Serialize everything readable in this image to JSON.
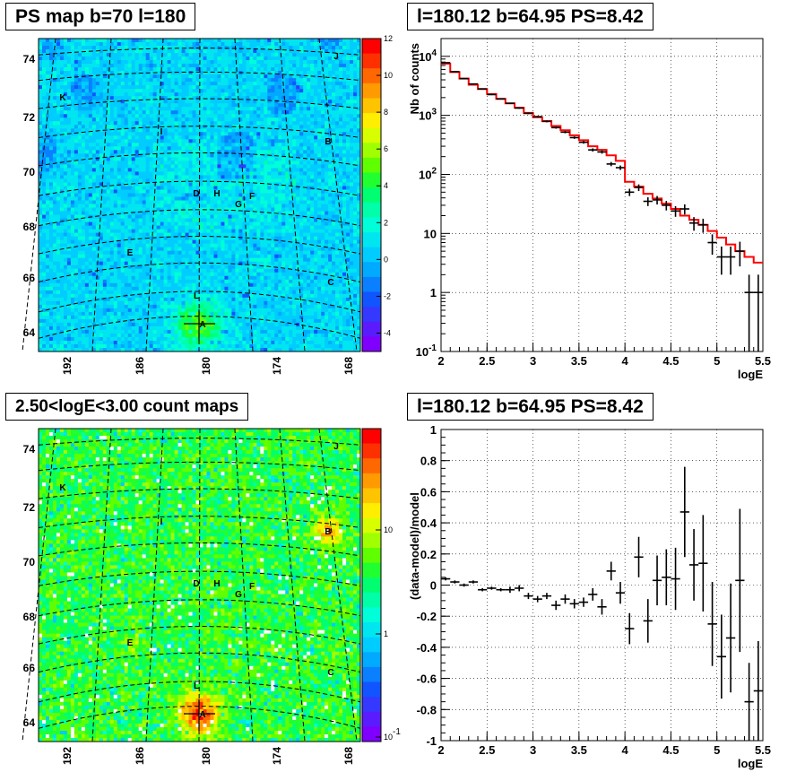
{
  "panels": {
    "tl_title": "PS map b=70 l=180",
    "tr_title": "l=180.12 b=64.95 PS=8.42",
    "bl_title": "2.50<logE<3.00 count maps",
    "br_title": "l=180.12 b=64.95 PS=8.42"
  },
  "colors": {
    "data": "#000000",
    "model": "#ff0000"
  },
  "chart_data": [
    {
      "type": "heatmap",
      "title": "PS map b=70 l=180",
      "x_ticks": [
        "192",
        "186",
        "180",
        "174",
        "168"
      ],
      "y_ticks": [
        "64",
        "66",
        "68",
        "70",
        "72",
        "74"
      ],
      "colorbar_ticks": [
        "12",
        "10",
        "8",
        "6",
        "4",
        "2",
        "0",
        "-2",
        "-4"
      ],
      "colorbar_range": [
        -5,
        12
      ],
      "source_labels": [
        "A",
        "B",
        "C",
        "D",
        "E",
        "F",
        "G",
        "H",
        "I",
        "J",
        "K",
        "L"
      ]
    },
    {
      "type": "line",
      "title": "l=180.12 b=64.95 PS=8.42",
      "xlabel": "logE",
      "ylabel": "Nb of counts",
      "xlim": [
        2,
        5.5
      ],
      "ylim": [
        0.1,
        20000
      ],
      "yscale": "log",
      "x_ticks": [
        "2",
        "2.5",
        "3",
        "3.5",
        "4",
        "4.5",
        "5",
        "5.5"
      ],
      "y_ticks": [
        "10^-1",
        "1",
        "10",
        "10^2",
        "10^3",
        "10^4"
      ],
      "grid": true,
      "series": [
        {
          "style": "errorbar",
          "x": [
            2.05,
            2.15,
            2.25,
            2.35,
            2.45,
            2.55,
            2.65,
            2.75,
            2.85,
            2.95,
            3.05,
            3.15,
            3.25,
            3.35,
            3.45,
            3.55,
            3.65,
            3.75,
            3.85,
            3.95,
            4.05,
            4.15,
            4.25,
            4.35,
            4.45,
            4.55,
            4.65,
            4.75,
            4.85,
            4.95,
            5.05,
            5.15,
            5.25,
            5.35,
            5.45
          ],
          "y": [
            7800,
            5500,
            4200,
            3400,
            2800,
            2250,
            1900,
            1600,
            1330,
            1080,
            950,
            790,
            620,
            520,
            420,
            350,
            260,
            240,
            150,
            130,
            50,
            60,
            35,
            37,
            30,
            24,
            26,
            15,
            14,
            7,
            4,
            4,
            5,
            1,
            1
          ]
        },
        {
          "style": "step",
          "x": [
            2.05,
            2.15,
            2.25,
            2.35,
            2.45,
            2.55,
            2.65,
            2.75,
            2.85,
            2.95,
            3.05,
            3.15,
            3.25,
            3.35,
            3.45,
            3.55,
            3.65,
            3.75,
            3.85,
            3.95,
            4.05,
            4.15,
            4.25,
            4.35,
            4.45,
            4.55,
            4.65,
            4.75,
            4.85,
            4.95,
            5.05,
            5.15,
            5.25,
            5.35,
            5.45
          ],
          "y": [
            7500,
            5400,
            4200,
            3300,
            2800,
            2300,
            1900,
            1600,
            1350,
            1100,
            930,
            800,
            660,
            560,
            460,
            380,
            300,
            260,
            210,
            170,
            75,
            62,
            47,
            39,
            32,
            26,
            20,
            17,
            14,
            11,
            8.5,
            6.5,
            5,
            4,
            3.2
          ]
        }
      ]
    },
    {
      "type": "heatmap",
      "title": "2.50<logE<3.00 count maps",
      "x_ticks": [
        "192",
        "186",
        "180",
        "174",
        "168"
      ],
      "y_ticks": [
        "64",
        "66",
        "68",
        "70",
        "72",
        "74"
      ],
      "colorbar_ticks": [
        "10",
        "1",
        "10^-1"
      ],
      "colorbar_scale": "log",
      "source_labels": [
        "A",
        "B",
        "C",
        "D",
        "E",
        "F",
        "G",
        "H",
        "I",
        "J",
        "K",
        "L"
      ]
    },
    {
      "type": "scatter",
      "title": "l=180.12 b=64.95 PS=8.42",
      "xlabel": "logE",
      "ylabel": "(data-model)/model",
      "xlim": [
        2,
        5.5
      ],
      "ylim": [
        -1,
        1
      ],
      "x_ticks": [
        "2",
        "2.5",
        "3",
        "3.5",
        "4",
        "4.5",
        "5",
        "5.5"
      ],
      "y_ticks": [
        "-1",
        "-0.8",
        "-0.6",
        "-0.4",
        "-0.2",
        "0",
        "0.2",
        "0.4",
        "0.6",
        "0.8",
        "1"
      ],
      "grid": true,
      "series": [
        {
          "style": "errorbar",
          "x": [
            2.05,
            2.15,
            2.25,
            2.35,
            2.45,
            2.55,
            2.65,
            2.75,
            2.85,
            2.95,
            3.05,
            3.15,
            3.25,
            3.35,
            3.45,
            3.55,
            3.65,
            3.75,
            3.85,
            3.95,
            4.05,
            4.15,
            4.25,
            4.35,
            4.45,
            4.55,
            4.65,
            4.75,
            4.85,
            4.95,
            5.05,
            5.15,
            5.25,
            5.35,
            5.45
          ],
          "y": [
            0.04,
            0.02,
            0.0,
            0.02,
            -0.03,
            -0.02,
            -0.03,
            -0.03,
            -0.02,
            -0.07,
            -0.09,
            -0.07,
            -0.13,
            -0.09,
            -0.12,
            -0.11,
            -0.06,
            -0.14,
            0.09,
            -0.05,
            -0.28,
            0.18,
            -0.23,
            0.03,
            0.05,
            0.04,
            0.47,
            0.13,
            0.14,
            -0.25,
            -0.46,
            -0.34,
            0.03,
            -0.75,
            -0.68
          ],
          "err": [
            0.01,
            0.01,
            0.01,
            0.01,
            0.01,
            0.01,
            0.01,
            0.02,
            0.02,
            0.02,
            0.02,
            0.02,
            0.03,
            0.03,
            0.03,
            0.03,
            0.04,
            0.05,
            0.06,
            0.07,
            0.1,
            0.13,
            0.14,
            0.16,
            0.18,
            0.2,
            0.29,
            0.23,
            0.31,
            0.27,
            0.27,
            0.35,
            0.46,
            0.25,
            0.32
          ]
        }
      ]
    }
  ]
}
